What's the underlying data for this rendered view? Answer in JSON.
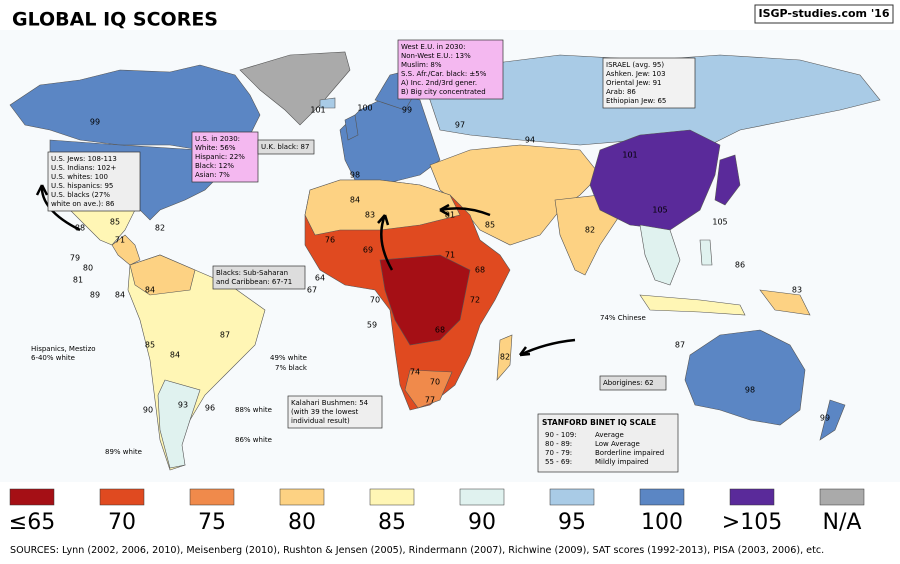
{
  "header": {
    "title": "GLOBAL IQ SCORES",
    "credit": "ISGP-studies.com '16"
  },
  "legend": [
    {
      "label": "≤65",
      "color": "#a50f15"
    },
    {
      "label": "70",
      "color": "#e04a20"
    },
    {
      "label": "75",
      "color": "#f08a4b"
    },
    {
      "label": "80",
      "color": "#fdd283"
    },
    {
      "label": "85",
      "color": "#fff6b5"
    },
    {
      "label": "90",
      "color": "#e0f2ef"
    },
    {
      "label": "95",
      "color": "#a9cbe6"
    },
    {
      "label": "100",
      "color": "#5b86c4"
    },
    {
      "label": ">105",
      "color": "#5a2a9a"
    },
    {
      "label": "N/A",
      "color": "#aaaaaa"
    }
  ],
  "notes": [
    {
      "lines": [
        "West E.U. in 2030:",
        "Non-West E.U.: 13%",
        "Muslim: 8%",
        "S.S. Afr./Car. black: ±5%",
        "A) Inc. 2nd/3rd gener.",
        "B) Big city concentrated"
      ]
    },
    {
      "lines": [
        "ISRAEL (avg. 95)",
        "Ashken. Jew: 103",
        "Oriental Jew: 91",
        "Arab: 86",
        "Ethiopian Jew: 65"
      ]
    },
    {
      "lines": [
        "U.S. in 2030:",
        "White: 56%",
        "Hispanic: 22%",
        "Black: 12%",
        "Asian: 7%"
      ]
    },
    {
      "lines": [
        "U.K. black: 87"
      ]
    },
    {
      "lines": [
        "U.S. Jews: 108-113",
        "U.S. Indians: 102+",
        "U.S. whites: 100",
        "U.S. hispanics: 95",
        "U.S. blacks (27%",
        "white on ave.): 86"
      ]
    },
    {
      "lines": [
        "Blacks: Sub-Saharan",
        "and Caribbean: 67-71"
      ]
    },
    {
      "lines": [
        "Hispanics, Mestizo",
        "6-40% white"
      ]
    },
    {
      "lines": [
        "Kalahari Bushmen: 54",
        "(with 39 the lowest",
        "individual result)"
      ]
    },
    {
      "lines": [
        "Aborigines: 62"
      ]
    }
  ],
  "stanford": {
    "title": "STANFORD BINET IQ SCALE",
    "rows": [
      [
        "90 - 109:",
        "Average"
      ],
      [
        "80 - 89:",
        "Low Average"
      ],
      [
        "70 - 79:",
        "Borderline impaired"
      ],
      [
        "55 - 69:",
        "Mildly impaired"
      ]
    ]
  },
  "annotations": [
    "49% white",
    "7% black",
    "88% white",
    "86% white",
    "89% white",
    "74% Chinese"
  ],
  "map_labels": [
    "99",
    "98",
    "88",
    "85",
    "82",
    "71",
    "79",
    "80",
    "81",
    "89",
    "84",
    "84",
    "85",
    "87",
    "84",
    "90",
    "93",
    "96",
    "101",
    "100",
    "99",
    "97",
    "98",
    "94",
    "101",
    "105",
    "105",
    "84",
    "83",
    "81",
    "85",
    "82",
    "76",
    "69",
    "71",
    "68",
    "70",
    "72",
    "68",
    "74",
    "70",
    "77",
    "82",
    "98",
    "87",
    "83",
    "86",
    "99",
    "59",
    "67",
    "64"
  ],
  "sources": "SOURCES: Lynn (2002, 2006, 2010), Meisenberg (2010), Rushton & Jensen (2005), Rindermann (2007), Richwine (2009), SAT scores (1992-2013), PISA (2003, 2006), etc."
}
